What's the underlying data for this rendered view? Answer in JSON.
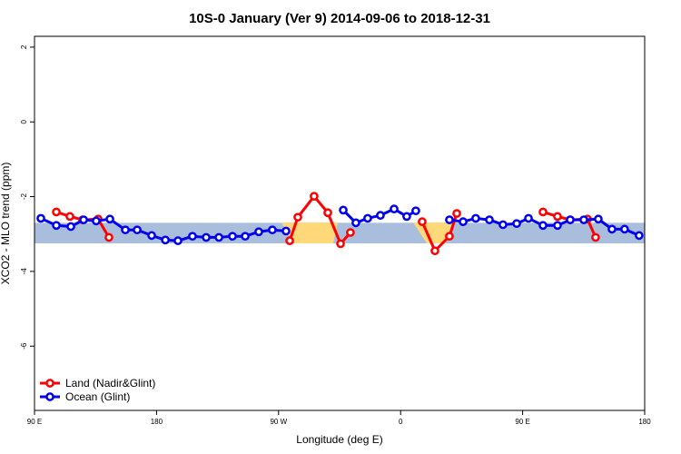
{
  "chart_data": {
    "type": "line",
    "title": "10S-0 January (Ver 9)   2014-09-06 to 2018-12-31",
    "x_label": "Longitude (deg E)",
    "y_label": "XCO2 - MLO trend (ppm)",
    "xlim": [
      90,
      540
    ],
    "ylim": [
      -7.72,
      2.29
    ],
    "xticks": [
      {
        "value": 90,
        "label": "90 E"
      },
      {
        "value": 180,
        "label": "180"
      },
      {
        "value": 270,
        "label": "90 W"
      },
      {
        "value": 360,
        "label": "0"
      },
      {
        "value": 450,
        "label": "90 E"
      },
      {
        "value": 540,
        "label": "180"
      }
    ],
    "yticks": [
      2,
      0,
      -2,
      -4,
      -6
    ],
    "band": [
      -3.25,
      -2.7
    ],
    "band_color": "#a8bedc",
    "legend": "bottom-left",
    "series": [
      {
        "name": "Land (Nadir&Glint)",
        "color": "#ff0000",
        "x": [
          106.1,
          116.1,
          125.5,
          136.9,
          144.9,
          null,
          278.2,
          284.2,
          296.2,
          306.3,
          315.7,
          323.0,
          null,
          375.9,
          385.3,
          396.0,
          401.4,
          null,
          465.0,
          475.7,
          485.1,
          497.8,
          503.8
        ],
        "values": [
          -2.41,
          -2.53,
          -2.62,
          -2.6,
          -3.09,
          null,
          -3.18,
          -2.55,
          -1.99,
          -2.43,
          -3.26,
          -2.96,
          null,
          -2.67,
          -3.45,
          -3.06,
          -2.45,
          null,
          -2.41,
          -2.53,
          -2.62,
          -2.6,
          -3.09
        ]
      },
      {
        "name": "Ocean (Glint)",
        "color": "#0000ee",
        "x": [
          94.7,
          106.1,
          116.8,
          126.2,
          135.5,
          145.6,
          157.0,
          165.7,
          176.4,
          186.5,
          195.8,
          206.5,
          216.6,
          226.0,
          236.0,
          245.4,
          255.4,
          265.4,
          275.5,
          null,
          317.7,
          327.0,
          335.7,
          345.1,
          355.2,
          364.5,
          371.2,
          null,
          396.0,
          406.1,
          415.4,
          425.5,
          435.5,
          445.6,
          454.3,
          465.0,
          475.7,
          485.1,
          495.1,
          505.8,
          515.9,
          525.2,
          535.9
        ],
        "values": [
          -2.58,
          -2.77,
          -2.8,
          -2.62,
          -2.65,
          -2.6,
          -2.89,
          -2.89,
          -3.04,
          -3.16,
          -3.18,
          -3.06,
          -3.09,
          -3.09,
          -3.06,
          -3.06,
          -2.94,
          -2.89,
          -2.92,
          null,
          -2.36,
          -2.7,
          -2.58,
          -2.5,
          -2.33,
          -2.53,
          -2.38,
          null,
          -2.62,
          -2.67,
          -2.58,
          -2.62,
          -2.75,
          -2.72,
          -2.58,
          -2.77,
          -2.77,
          -2.62,
          -2.62,
          -2.6,
          -2.87,
          -2.87,
          -3.04
        ]
      }
    ]
  }
}
